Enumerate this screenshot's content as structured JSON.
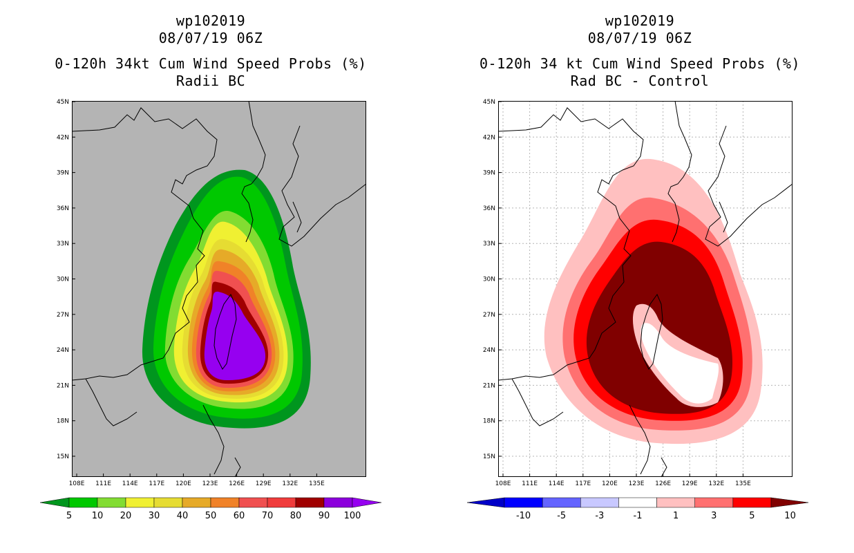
{
  "left_panel": {
    "title_line1": "wp102019",
    "title_line2": "08/07/19 06Z",
    "title_line3": "0-120h 34kt Cum Wind Speed Probs (%)",
    "title_line4": "Radii BC",
    "lat_ticks": [
      "45N",
      "42N",
      "39N",
      "36N",
      "33N",
      "30N",
      "27N",
      "24N",
      "21N",
      "18N",
      "15N"
    ],
    "lon_ticks": [
      "108E",
      "111E",
      "114E",
      "117E",
      "120E",
      "123E",
      "126E",
      "129E",
      "132E",
      "135E"
    ],
    "colorbar_labels": [
      "5",
      "10",
      "20",
      "30",
      "40",
      "50",
      "60",
      "70",
      "80",
      "90",
      "100"
    ],
    "colorbar_colors": [
      "#00961e",
      "#00c800",
      "#82dc32",
      "#f0f032",
      "#e6dc32",
      "#e6aa28",
      "#f08228",
      "#f05050",
      "#f03c3c",
      "#a00000",
      "#8c00dc",
      "#9600f0"
    ]
  },
  "right_panel": {
    "title_line1": "wp102019",
    "title_line2": "08/07/19 06Z",
    "title_line3": "0-120h 34 kt Cum Wind Speed Probs (%)",
    "title_line4": "Rad BC - Control",
    "lat_ticks": [
      "45N",
      "42N",
      "39N",
      "36N",
      "33N",
      "30N",
      "27N",
      "24N",
      "21N",
      "18N",
      "15N"
    ],
    "lon_ticks": [
      "108E",
      "111E",
      "114E",
      "117E",
      "120E",
      "123E",
      "126E",
      "129E",
      "132E",
      "135E"
    ],
    "colorbar_labels": [
      "-10",
      "-5",
      "-3",
      "-1",
      "1",
      "3",
      "5",
      "10"
    ],
    "colorbar_colors": [
      "#0000c8",
      "#0000ff",
      "#6464ff",
      "#c8c8ff",
      "#ffffff",
      "#ffc0c0",
      "#ff7070",
      "#ff0000",
      "#800000"
    ]
  },
  "chart_data": [
    {
      "type": "heatmap",
      "title": "0-120h 34kt Cum Wind Speed Probs (%) - Radii BC",
      "storm": "wp102019",
      "valid": "08/07/19 06Z",
      "x_range_lon_E": [
        107,
        139
      ],
      "y_range_lat_N": [
        13,
        45
      ],
      "levels": [
        5,
        10,
        20,
        30,
        40,
        50,
        60,
        70,
        80,
        90,
        100
      ]
    },
    {
      "type": "heatmap",
      "title": "0-120h 34 kt Cum Wind Speed Probs (%) - Rad BC - Control",
      "storm": "wp102019",
      "valid": "08/07/19 06Z",
      "x_range_lon_E": [
        107,
        139
      ],
      "y_range_lat_N": [
        13,
        45
      ],
      "levels": [
        -10,
        -5,
        -3,
        -1,
        1,
        3,
        5,
        10
      ]
    }
  ]
}
